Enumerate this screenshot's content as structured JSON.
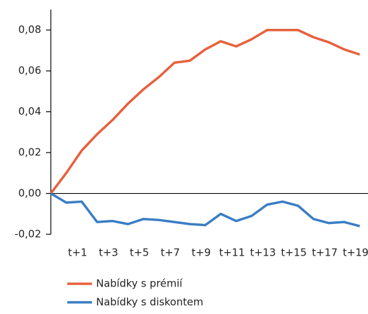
{
  "chart_data": {
    "type": "line",
    "categories": [
      null,
      null,
      "t+1",
      null,
      "t+3",
      null,
      "t+5",
      null,
      "t+7",
      null,
      "t+9",
      null,
      "t+11",
      null,
      "t+13",
      null,
      "t+15",
      null,
      "t+17",
      null,
      "t+19"
    ],
    "series": [
      {
        "name": "Nabídky s prémií",
        "color": "#e8603c",
        "values": [
          0,
          0.01,
          0.021,
          0.029,
          0.036,
          0.044,
          0.051,
          0.057,
          0.064,
          0.065,
          0.0705,
          0.0745,
          0.072,
          0.0755,
          0.08,
          0.08,
          0.08,
          0.0765,
          0.074,
          0.0705,
          0.068
        ]
      },
      {
        "name": "Nabídky s diskontem",
        "color": "#3a7dc4",
        "values": [
          0,
          -0.0045,
          -0.004,
          -0.014,
          -0.0135,
          -0.015,
          -0.0125,
          -0.013,
          -0.014,
          -0.015,
          -0.0155,
          -0.01,
          -0.0135,
          -0.011,
          -0.0055,
          -0.004,
          -0.006,
          -0.0125,
          -0.0145,
          -0.014,
          -0.016
        ]
      }
    ],
    "ylim": [
      -0.02,
      0.09
    ],
    "yticks": [
      {
        "value": -0.02,
        "label": "-0,02"
      },
      {
        "value": 0,
        "label": "0,00"
      },
      {
        "value": 0.02,
        "label": "0,02"
      },
      {
        "value": 0.04,
        "label": "0,04"
      },
      {
        "value": 0.06,
        "label": "0,06"
      },
      {
        "value": 0.08,
        "label": "0,08"
      }
    ]
  }
}
